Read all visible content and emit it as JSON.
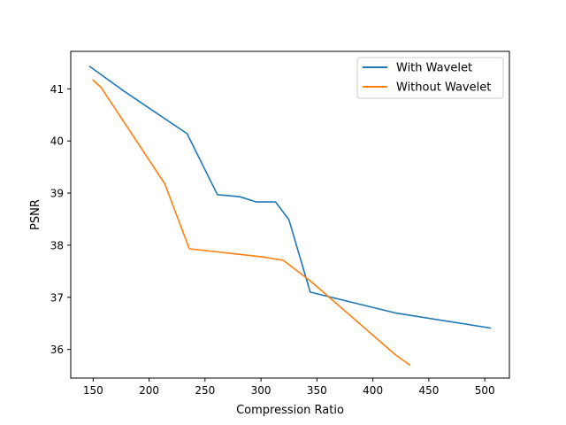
{
  "chart_data": {
    "type": "line",
    "title": "",
    "xlabel": "Compression Ratio",
    "ylabel": "PSNR",
    "xlim": [
      130,
      522
    ],
    "ylim": [
      35.45,
      41.72
    ],
    "xticks": [
      150,
      200,
      250,
      300,
      350,
      400,
      450,
      500
    ],
    "yticks": [
      36,
      37,
      38,
      39,
      40,
      41
    ],
    "grid": false,
    "legend": "top-right",
    "series": [
      {
        "name": "With Wavelet",
        "color": "#1f77b4",
        "x": [
          147,
          178,
          234,
          261,
          281,
          296,
          313,
          325,
          344,
          420,
          505
        ],
        "y": [
          41.43,
          40.95,
          40.14,
          38.97,
          38.93,
          38.83,
          38.83,
          38.49,
          37.1,
          36.7,
          36.41
        ]
      },
      {
        "name": "Without Wavelet",
        "color": "#ff7f0e",
        "x": [
          150,
          157,
          214,
          236,
          300,
          320,
          345,
          420,
          433
        ],
        "y": [
          41.17,
          41.03,
          39.18,
          37.93,
          37.78,
          37.71,
          37.3,
          35.9,
          35.7
        ]
      }
    ]
  }
}
